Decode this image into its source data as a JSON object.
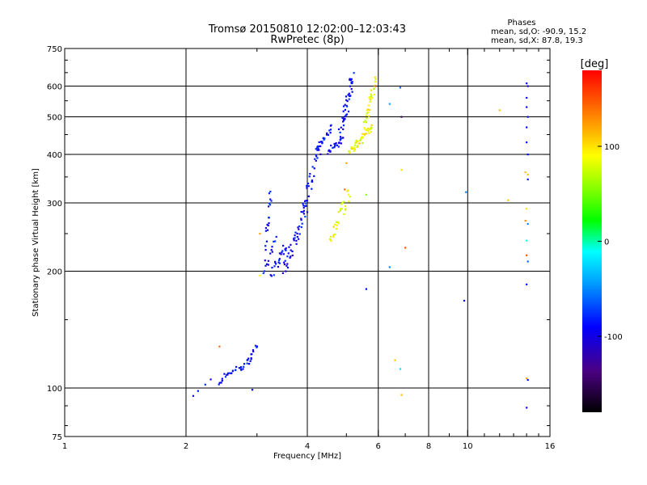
{
  "chart_data": {
    "type": "scatter",
    "title": "Tromsø 20150810 12:02:00–12:03:43",
    "subtitle": "RwPretec (8p)",
    "xlabel": "Frequency [MHz]",
    "ylabel": "Stationary phase Virtual Height [km]",
    "x_scale": "log",
    "y_scale": "log",
    "xlim": [
      1,
      16
    ],
    "ylim": [
      75,
      750
    ],
    "x_ticks": [
      1,
      2,
      4,
      6,
      8,
      10,
      16
    ],
    "x_tick_labels": [
      "1",
      "2",
      "4",
      "6",
      "8",
      "10",
      "16"
    ],
    "x_minor_ticks": [
      3,
      5,
      7,
      9,
      11,
      12,
      13,
      14,
      15
    ],
    "y_ticks": [
      75,
      100,
      200,
      300,
      400,
      500,
      600,
      750
    ],
    "y_tick_labels": [
      "75",
      "100",
      "200",
      "300",
      "400",
      "500",
      "600",
      "750"
    ],
    "x_grid": [
      2,
      4,
      6,
      8,
      10
    ],
    "y_grid": [
      100,
      200,
      300,
      400,
      500,
      600
    ],
    "stats_header": "Phases",
    "stats_o": "mean, sd,O: -90.9, 15.2",
    "stats_x": "mean, sd,X:  87.8, 19.3",
    "colorbar": {
      "label": "[deg]",
      "range": [
        -180,
        180
      ],
      "ticks": [
        100,
        0,
        -100
      ],
      "tick_labels": [
        "100",
        "0",
        "-100"
      ]
    },
    "series": [
      {
        "mode": "O",
        "phase": -90,
        "traces": [
          {
            "x": [
              2.08,
              2.3
            ],
            "y": [
              96,
              104
            ],
            "n": 4
          },
          {
            "x": [
              2.4,
              2.9
            ],
            "y": [
              104,
              118
            ],
            "n": 30
          },
          {
            "x": [
              2.85,
              3.0
            ],
            "y": [
              118,
              130
            ],
            "n": 10
          },
          {
            "x": [
              3.15,
              3.25
            ],
            "y": [
              235,
              318
            ],
            "n": 18
          },
          {
            "x": [
              3.1,
              3.35
            ],
            "y": [
              200,
              240
            ],
            "n": 14
          },
          {
            "x": [
              3.25,
              3.55
            ],
            "y": [
              195,
              235
            ],
            "n": 22
          },
          {
            "x": [
              3.5,
              4.0
            ],
            "y": [
              198,
              300
            ],
            "n": 45
          },
          {
            "x": [
              3.9,
              4.3
            ],
            "y": [
              290,
              420
            ],
            "n": 30
          },
          {
            "x": [
              4.2,
              4.6
            ],
            "y": [
              410,
              470
            ],
            "n": 22
          },
          {
            "x": [
              4.5,
              4.9
            ],
            "y": [
              405,
              440
            ],
            "n": 20
          },
          {
            "x": [
              4.8,
              5.2
            ],
            "y": [
              440,
              640
            ],
            "n": 50
          }
        ]
      },
      {
        "mode": "X",
        "phase": 88,
        "traces": [
          {
            "x": [
              4.55,
              5.1
            ],
            "y": [
              240,
              320
            ],
            "n": 30
          },
          {
            "x": [
              5.1,
              5.8
            ],
            "y": [
              405,
              470
            ],
            "n": 40
          },
          {
            "x": [
              5.5,
              5.9
            ],
            "y": [
              460,
              620
            ],
            "n": 30
          }
        ]
      },
      {
        "mode": "scattered",
        "points": [
          {
            "x": 2.42,
            "y": 128,
            "phase": 140
          },
          {
            "x": 3.05,
            "y": 195,
            "phase": 90
          },
          {
            "x": 3.05,
            "y": 250,
            "phase": 120
          },
          {
            "x": 2.92,
            "y": 99,
            "phase": -90
          },
          {
            "x": 4.95,
            "y": 325,
            "phase": 140
          },
          {
            "x": 5.0,
            "y": 380,
            "phase": 120
          },
          {
            "x": 5.9,
            "y": 600,
            "phase": 150
          },
          {
            "x": 5.6,
            "y": 180,
            "phase": -90
          },
          {
            "x": 5.6,
            "y": 315,
            "phase": 60
          },
          {
            "x": 6.4,
            "y": 540,
            "phase": -40
          },
          {
            "x": 6.4,
            "y": 205,
            "phase": -50
          },
          {
            "x": 6.6,
            "y": 118,
            "phase": 110
          },
          {
            "x": 6.8,
            "y": 595,
            "phase": -60
          },
          {
            "x": 6.85,
            "y": 500,
            "phase": -150
          },
          {
            "x": 6.85,
            "y": 365,
            "phase": 100
          },
          {
            "x": 6.85,
            "y": 96,
            "phase": 110
          },
          {
            "x": 6.8,
            "y": 112,
            "phase": -20
          },
          {
            "x": 7.0,
            "y": 230,
            "phase": 150
          },
          {
            "x": 9.9,
            "y": 320,
            "phase": -50
          },
          {
            "x": 9.8,
            "y": 168,
            "phase": -90
          },
          {
            "x": 12.0,
            "y": 520,
            "phase": 110
          },
          {
            "x": 12.6,
            "y": 305,
            "phase": 110
          },
          {
            "x": 14.0,
            "y": 610,
            "phase": -90
          },
          {
            "x": 14.1,
            "y": 600,
            "phase": -100
          },
          {
            "x": 14.0,
            "y": 560,
            "phase": -90
          },
          {
            "x": 14.0,
            "y": 530,
            "phase": -90
          },
          {
            "x": 14.1,
            "y": 500,
            "phase": -90
          },
          {
            "x": 14.0,
            "y": 470,
            "phase": -90
          },
          {
            "x": 14.0,
            "y": 430,
            "phase": -90
          },
          {
            "x": 14.1,
            "y": 400,
            "phase": -90
          },
          {
            "x": 13.9,
            "y": 360,
            "phase": 110
          },
          {
            "x": 14.1,
            "y": 355,
            "phase": 110
          },
          {
            "x": 14.1,
            "y": 345,
            "phase": -90
          },
          {
            "x": 14.0,
            "y": 290,
            "phase": 100
          },
          {
            "x": 13.9,
            "y": 270,
            "phase": 130
          },
          {
            "x": 14.1,
            "y": 265,
            "phase": -50
          },
          {
            "x": 14.0,
            "y": 240,
            "phase": -10
          },
          {
            "x": 14.0,
            "y": 220,
            "phase": 150
          },
          {
            "x": 14.1,
            "y": 212,
            "phase": -60
          },
          {
            "x": 14.0,
            "y": 185,
            "phase": -90
          },
          {
            "x": 14.0,
            "y": 106,
            "phase": 120
          },
          {
            "x": 14.1,
            "y": 105,
            "phase": -90
          },
          {
            "x": 14.0,
            "y": 89,
            "phase": -100
          }
        ]
      }
    ]
  }
}
